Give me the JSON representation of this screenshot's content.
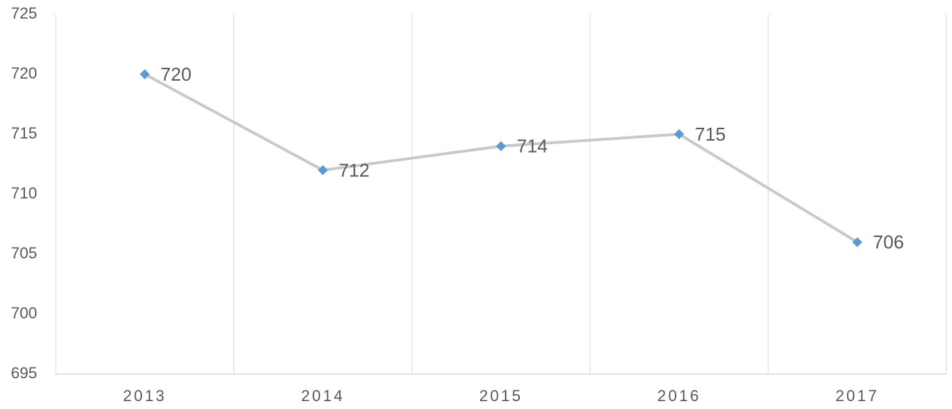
{
  "chart_data": {
    "type": "line",
    "categories": [
      "2013",
      "2014",
      "2015",
      "2016",
      "2017"
    ],
    "series": [
      {
        "values": [
          720,
          712,
          714,
          715,
          706
        ],
        "color": "#c9c9c9",
        "marker_color": "#5b9bd5"
      }
    ],
    "ylim": [
      695,
      725
    ],
    "yticks": [
      695,
      700,
      705,
      710,
      715,
      720,
      725
    ],
    "grid": false
  }
}
